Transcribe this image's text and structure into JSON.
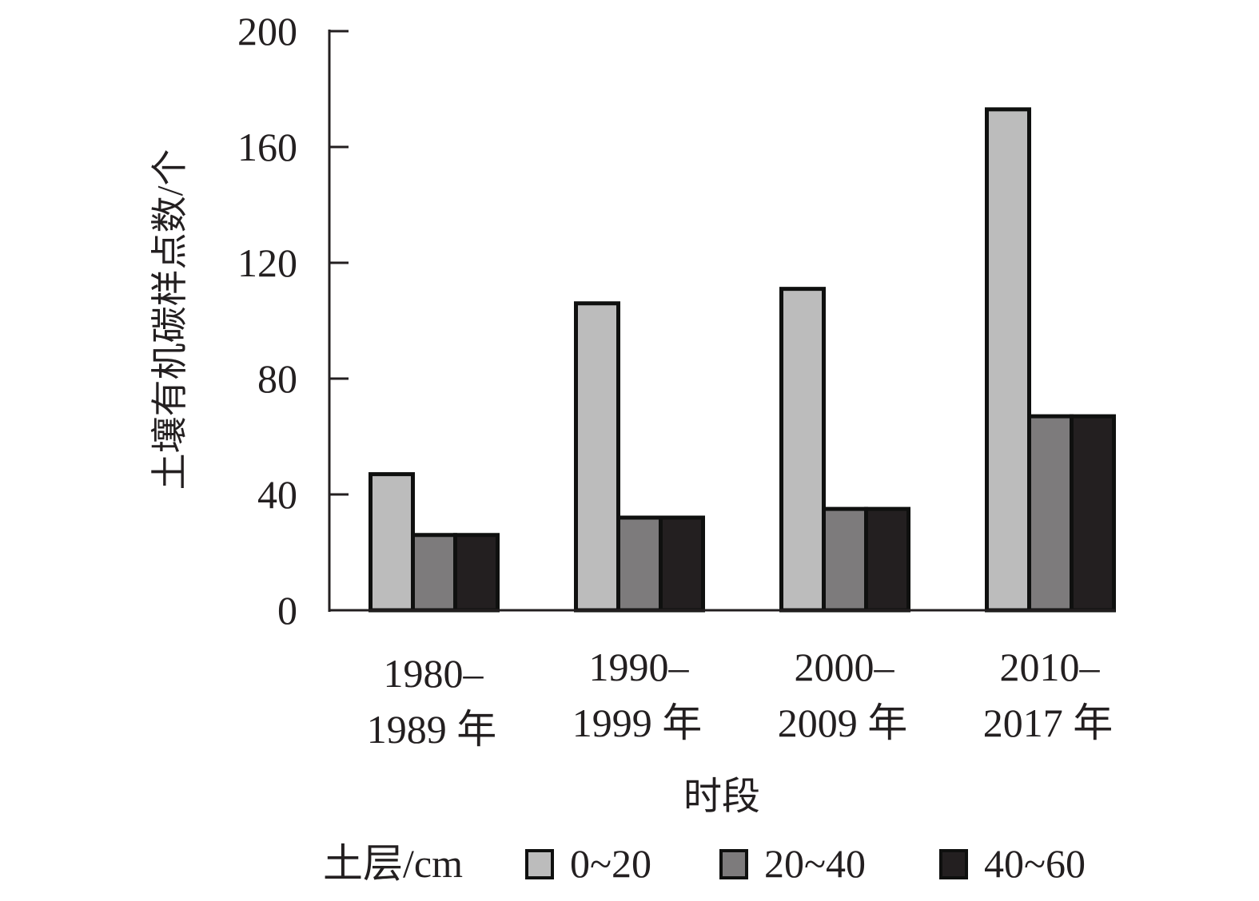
{
  "chart_data": {
    "type": "bar",
    "categories": [
      {
        "line1": "1980–",
        "line2": "1989 年"
      },
      {
        "line1": "1990–",
        "line2": "1999 年"
      },
      {
        "line1": "2000–",
        "line2": "2009 年"
      },
      {
        "line1": "2010–",
        "line2": "2017 年"
      }
    ],
    "series": [
      {
        "name": "0~20",
        "color": "#bcbcbc",
        "values": [
          47,
          106,
          111,
          173
        ]
      },
      {
        "name": "20~40",
        "color": "#7d7b7c",
        "values": [
          26,
          32,
          35,
          67
        ]
      },
      {
        "name": "40~60",
        "color": "#231f20",
        "values": [
          26,
          32,
          35,
          67
        ]
      }
    ],
    "xlabel": "时段",
    "ylabel": "土壤有机碳样点数/个",
    "ylim": [
      0,
      200
    ],
    "yticks": [
      "0",
      "40",
      "80",
      "120",
      "160",
      "200"
    ],
    "legend_title": "土层/cm",
    "legend_position": "bottom",
    "grid": false
  }
}
